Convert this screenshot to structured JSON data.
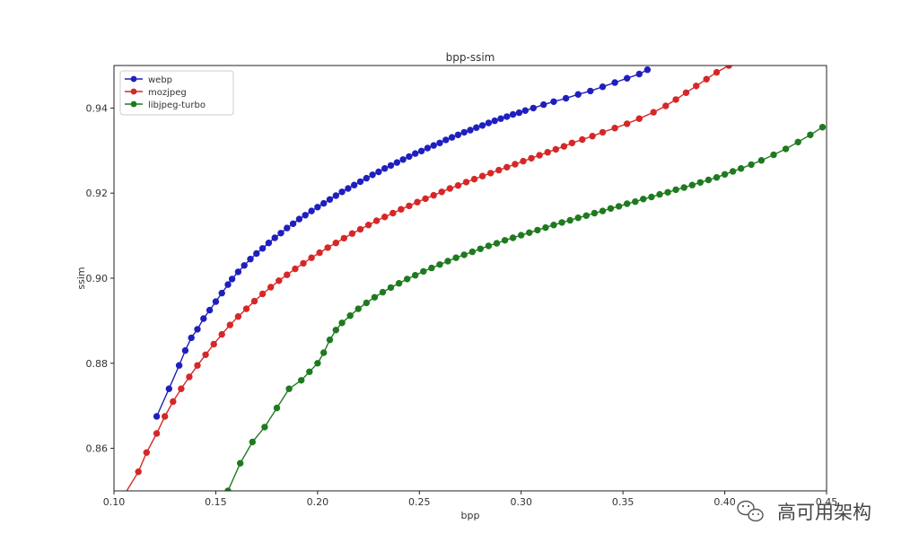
{
  "chart_data": {
    "type": "line",
    "title": "bpp-ssim",
    "xlabel": "bpp",
    "ylabel": "ssim",
    "xlim": [
      0.1,
      0.45
    ],
    "ylim": [
      0.85,
      0.95
    ],
    "xticks": [
      "0.10",
      "0.15",
      "0.20",
      "0.25",
      "0.30",
      "0.35",
      "0.40",
      "0.45"
    ],
    "yticks": [
      "0.86",
      "0.88",
      "0.90",
      "0.92",
      "0.94"
    ],
    "grid": false,
    "legend_position": "top-left",
    "series": [
      {
        "name": "webp",
        "color": "#1f1fbf",
        "marker": "circle",
        "points": [
          [
            0.121,
            0.8675
          ],
          [
            0.127,
            0.874
          ],
          [
            0.132,
            0.8795
          ],
          [
            0.135,
            0.883
          ],
          [
            0.138,
            0.886
          ],
          [
            0.141,
            0.888
          ],
          [
            0.144,
            0.8905
          ],
          [
            0.147,
            0.8925
          ],
          [
            0.15,
            0.8945
          ],
          [
            0.153,
            0.8965
          ],
          [
            0.156,
            0.8985
          ],
          [
            0.158,
            0.8998
          ],
          [
            0.161,
            0.9015
          ],
          [
            0.164,
            0.903
          ],
          [
            0.167,
            0.9045
          ],
          [
            0.17,
            0.9058
          ],
          [
            0.173,
            0.907
          ],
          [
            0.176,
            0.9083
          ],
          [
            0.179,
            0.9095
          ],
          [
            0.182,
            0.9106
          ],
          [
            0.185,
            0.9118
          ],
          [
            0.188,
            0.9128
          ],
          [
            0.191,
            0.9139
          ],
          [
            0.194,
            0.9148
          ],
          [
            0.197,
            0.9158
          ],
          [
            0.2,
            0.9167
          ],
          [
            0.203,
            0.9176
          ],
          [
            0.206,
            0.9185
          ],
          [
            0.209,
            0.9194
          ],
          [
            0.212,
            0.9203
          ],
          [
            0.215,
            0.9211
          ],
          [
            0.218,
            0.9219
          ],
          [
            0.221,
            0.9227
          ],
          [
            0.224,
            0.9235
          ],
          [
            0.227,
            0.9243
          ],
          [
            0.23,
            0.925
          ],
          [
            0.233,
            0.9258
          ],
          [
            0.236,
            0.9265
          ],
          [
            0.239,
            0.9272
          ],
          [
            0.242,
            0.9279
          ],
          [
            0.245,
            0.9286
          ],
          [
            0.248,
            0.9293
          ],
          [
            0.251,
            0.9299
          ],
          [
            0.254,
            0.9306
          ],
          [
            0.257,
            0.9312
          ],
          [
            0.26,
            0.9318
          ],
          [
            0.263,
            0.9325
          ],
          [
            0.266,
            0.9331
          ],
          [
            0.269,
            0.9337
          ],
          [
            0.272,
            0.9343
          ],
          [
            0.275,
            0.9348
          ],
          [
            0.278,
            0.9354
          ],
          [
            0.281,
            0.9359
          ],
          [
            0.284,
            0.9365
          ],
          [
            0.287,
            0.937
          ],
          [
            0.29,
            0.9375
          ],
          [
            0.293,
            0.938
          ],
          [
            0.296,
            0.9385
          ],
          [
            0.299,
            0.9389
          ],
          [
            0.302,
            0.9394
          ],
          [
            0.306,
            0.94
          ],
          [
            0.311,
            0.9408
          ],
          [
            0.316,
            0.9415
          ],
          [
            0.322,
            0.9423
          ],
          [
            0.328,
            0.9432
          ],
          [
            0.334,
            0.944
          ],
          [
            0.34,
            0.945
          ],
          [
            0.346,
            0.946
          ],
          [
            0.352,
            0.947
          ],
          [
            0.358,
            0.948
          ],
          [
            0.362,
            0.949
          ]
        ]
      },
      {
        "name": "mozjpeg",
        "color": "#d62728",
        "marker": "circle",
        "points": [
          [
            0.105,
            0.849
          ],
          [
            0.112,
            0.8545
          ],
          [
            0.116,
            0.859
          ],
          [
            0.121,
            0.8635
          ],
          [
            0.125,
            0.8675
          ],
          [
            0.129,
            0.871
          ],
          [
            0.133,
            0.874
          ],
          [
            0.137,
            0.8768
          ],
          [
            0.141,
            0.8795
          ],
          [
            0.145,
            0.882
          ],
          [
            0.149,
            0.8845
          ],
          [
            0.153,
            0.8868
          ],
          [
            0.157,
            0.889
          ],
          [
            0.161,
            0.891
          ],
          [
            0.165,
            0.8928
          ],
          [
            0.169,
            0.8946
          ],
          [
            0.173,
            0.8963
          ],
          [
            0.177,
            0.8979
          ],
          [
            0.181,
            0.8994
          ],
          [
            0.185,
            0.9008
          ],
          [
            0.189,
            0.9022
          ],
          [
            0.193,
            0.9035
          ],
          [
            0.197,
            0.9048
          ],
          [
            0.201,
            0.906
          ],
          [
            0.205,
            0.9072
          ],
          [
            0.209,
            0.9083
          ],
          [
            0.213,
            0.9094
          ],
          [
            0.217,
            0.9105
          ],
          [
            0.221,
            0.9115
          ],
          [
            0.225,
            0.9125
          ],
          [
            0.229,
            0.9135
          ],
          [
            0.233,
            0.9144
          ],
          [
            0.237,
            0.9153
          ],
          [
            0.241,
            0.9162
          ],
          [
            0.245,
            0.917
          ],
          [
            0.249,
            0.9179
          ],
          [
            0.253,
            0.9187
          ],
          [
            0.257,
            0.9195
          ],
          [
            0.261,
            0.9203
          ],
          [
            0.265,
            0.9211
          ],
          [
            0.269,
            0.9218
          ],
          [
            0.273,
            0.9226
          ],
          [
            0.277,
            0.9233
          ],
          [
            0.281,
            0.924
          ],
          [
            0.285,
            0.9247
          ],
          [
            0.289,
            0.9254
          ],
          [
            0.293,
            0.9261
          ],
          [
            0.297,
            0.9268
          ],
          [
            0.301,
            0.9275
          ],
          [
            0.305,
            0.9282
          ],
          [
            0.309,
            0.9289
          ],
          [
            0.313,
            0.9296
          ],
          [
            0.317,
            0.9303
          ],
          [
            0.321,
            0.931
          ],
          [
            0.325,
            0.9318
          ],
          [
            0.33,
            0.9326
          ],
          [
            0.335,
            0.9334
          ],
          [
            0.34,
            0.9343
          ],
          [
            0.346,
            0.9353
          ],
          [
            0.352,
            0.9363
          ],
          [
            0.358,
            0.9375
          ],
          [
            0.365,
            0.939
          ],
          [
            0.371,
            0.9405
          ],
          [
            0.376,
            0.942
          ],
          [
            0.381,
            0.9436
          ],
          [
            0.386,
            0.9452
          ],
          [
            0.391,
            0.9468
          ],
          [
            0.396,
            0.9484
          ],
          [
            0.402,
            0.95
          ]
        ]
      },
      {
        "name": "libjpeg-turbo",
        "color": "#1e7a1e",
        "marker": "circle",
        "points": [
          [
            0.156,
            0.85
          ],
          [
            0.162,
            0.8565
          ],
          [
            0.168,
            0.8615
          ],
          [
            0.174,
            0.865
          ],
          [
            0.18,
            0.8695
          ],
          [
            0.186,
            0.874
          ],
          [
            0.192,
            0.876
          ],
          [
            0.196,
            0.878
          ],
          [
            0.2,
            0.88
          ],
          [
            0.203,
            0.8825
          ],
          [
            0.206,
            0.8855
          ],
          [
            0.209,
            0.8878
          ],
          [
            0.212,
            0.8895
          ],
          [
            0.216,
            0.8912
          ],
          [
            0.22,
            0.8928
          ],
          [
            0.224,
            0.8942
          ],
          [
            0.228,
            0.8955
          ],
          [
            0.232,
            0.8967
          ],
          [
            0.236,
            0.8978
          ],
          [
            0.24,
            0.8988
          ],
          [
            0.244,
            0.8998
          ],
          [
            0.248,
            0.9007
          ],
          [
            0.252,
            0.9016
          ],
          [
            0.256,
            0.9024
          ],
          [
            0.26,
            0.9032
          ],
          [
            0.264,
            0.904
          ],
          [
            0.268,
            0.9048
          ],
          [
            0.272,
            0.9055
          ],
          [
            0.276,
            0.9062
          ],
          [
            0.28,
            0.9069
          ],
          [
            0.284,
            0.9076
          ],
          [
            0.288,
            0.9082
          ],
          [
            0.292,
            0.9089
          ],
          [
            0.296,
            0.9095
          ],
          [
            0.3,
            0.9101
          ],
          [
            0.304,
            0.9107
          ],
          [
            0.308,
            0.9113
          ],
          [
            0.312,
            0.9119
          ],
          [
            0.316,
            0.9125
          ],
          [
            0.32,
            0.9131
          ],
          [
            0.324,
            0.9136
          ],
          [
            0.328,
            0.9142
          ],
          [
            0.332,
            0.9147
          ],
          [
            0.336,
            0.9153
          ],
          [
            0.34,
            0.9158
          ],
          [
            0.344,
            0.9164
          ],
          [
            0.348,
            0.9169
          ],
          [
            0.352,
            0.9175
          ],
          [
            0.356,
            0.918
          ],
          [
            0.36,
            0.9186
          ],
          [
            0.364,
            0.9191
          ],
          [
            0.368,
            0.9197
          ],
          [
            0.372,
            0.9202
          ],
          [
            0.376,
            0.9208
          ],
          [
            0.38,
            0.9213
          ],
          [
            0.384,
            0.9219
          ],
          [
            0.388,
            0.9225
          ],
          [
            0.392,
            0.9231
          ],
          [
            0.396,
            0.9237
          ],
          [
            0.4,
            0.9244
          ],
          [
            0.404,
            0.9251
          ],
          [
            0.408,
            0.9258
          ],
          [
            0.413,
            0.9267
          ],
          [
            0.418,
            0.9277
          ],
          [
            0.424,
            0.929
          ],
          [
            0.43,
            0.9304
          ],
          [
            0.436,
            0.932
          ],
          [
            0.442,
            0.9337
          ],
          [
            0.448,
            0.9355
          ]
        ]
      }
    ]
  },
  "watermark": {
    "text": "高可用架构",
    "icon": "wechat-icon"
  }
}
